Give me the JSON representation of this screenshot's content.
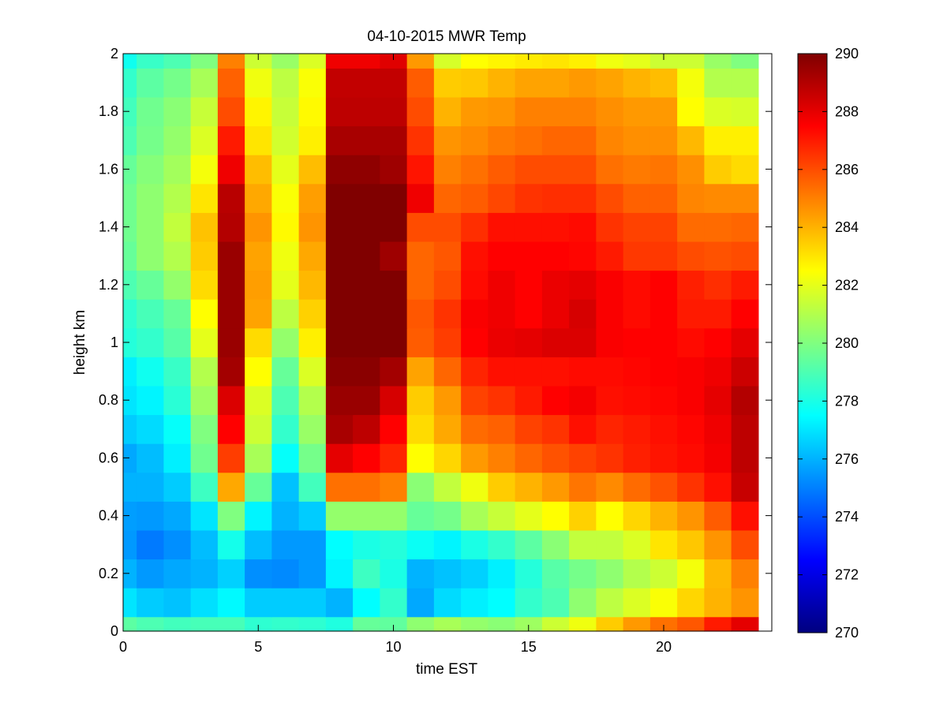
{
  "chart_data": {
    "type": "heatmap",
    "title": "04-10-2015 MWR Temp",
    "xlabel": "time EST",
    "ylabel": "height km",
    "xlim": [
      0,
      24
    ],
    "ylim": [
      0,
      2
    ],
    "x_ticks": [
      0,
      5,
      10,
      15,
      20
    ],
    "y_ticks": [
      0,
      0.2,
      0.4,
      0.6,
      0.8,
      1,
      1.2,
      1.4,
      1.6,
      1.8,
      2
    ],
    "x_tick_labels": [
      "0",
      "5",
      "10",
      "15",
      "20"
    ],
    "y_tick_labels": [
      "0",
      "0.2",
      "0.4",
      "0.6",
      "0.8",
      "1",
      "1.2",
      "1.4",
      "1.6",
      "1.8",
      "2"
    ],
    "colorbar": {
      "min": 270,
      "max": 290,
      "colormap": "jet",
      "ticks": [
        270,
        272,
        274,
        276,
        278,
        280,
        282,
        284,
        286,
        288,
        290
      ],
      "tick_labels": [
        "270",
        "272",
        "274",
        "276",
        "278",
        "280",
        "282",
        "284",
        "286",
        "288",
        "290"
      ]
    },
    "grid": false,
    "x": [
      0,
      1,
      2,
      3,
      4,
      5,
      6,
      7,
      8,
      9,
      10,
      11,
      12,
      13,
      14,
      15,
      16,
      17,
      18,
      19,
      20,
      21,
      22,
      23
    ],
    "y": [
      0,
      0.1,
      0.2,
      0.3,
      0.4,
      0.5,
      0.6,
      0.7,
      0.8,
      0.9,
      1.0,
      1.1,
      1.2,
      1.3,
      1.4,
      1.5,
      1.6,
      1.7,
      1.8,
      1.9,
      2.0
    ],
    "z": [
      [
        279.3,
        279.0,
        278.8,
        278.9,
        278.9,
        278.4,
        278.5,
        278.4,
        278.1,
        279.5,
        279.4,
        280.3,
        280.8,
        280.4,
        280.2,
        280.6,
        281.5,
        282.2,
        283.5,
        284.5,
        285.3,
        285.8,
        287.0,
        288.0
      ],
      [
        277.0,
        276.5,
        276.3,
        276.9,
        277.4,
        276.5,
        276.5,
        276.5,
        276.0,
        277.5,
        278.5,
        275.8,
        276.8,
        277.2,
        277.5,
        278.5,
        279.0,
        280.3,
        281.2,
        281.8,
        282.4,
        283.3,
        284.0,
        284.6
      ],
      [
        276.0,
        275.5,
        275.8,
        276.0,
        276.6,
        275.3,
        275.2,
        275.5,
        277.3,
        278.7,
        278.0,
        276.0,
        276.3,
        276.6,
        277.2,
        278.2,
        279.2,
        279.8,
        280.3,
        281.0,
        281.5,
        282.3,
        283.9,
        285.0
      ],
      [
        275.5,
        274.9,
        275.3,
        276.2,
        277.9,
        276.2,
        275.5,
        275.5,
        277.5,
        278.0,
        278.2,
        277.7,
        277.3,
        278.0,
        278.5,
        279.3,
        280.2,
        281.3,
        281.3,
        281.8,
        283.0,
        283.6,
        284.6,
        286.0
      ],
      [
        275.6,
        275.5,
        275.8,
        277.0,
        280.0,
        277.3,
        276.0,
        276.5,
        280.4,
        280.4,
        280.4,
        279.5,
        279.8,
        280.8,
        281.4,
        282.0,
        282.5,
        283.4,
        282.5,
        283.3,
        284.0,
        284.6,
        285.7,
        287.2
      ],
      [
        276.0,
        276.0,
        276.5,
        278.7,
        284.2,
        279.5,
        276.3,
        278.8,
        285.3,
        285.3,
        285.0,
        280.2,
        281.3,
        282.2,
        283.5,
        284.0,
        284.5,
        285.2,
        284.8,
        285.4,
        285.9,
        286.5,
        287.2,
        288.6
      ],
      [
        275.8,
        276.2,
        277.2,
        279.7,
        286.3,
        280.8,
        277.6,
        279.8,
        288.0,
        287.5,
        286.8,
        282.5,
        283.3,
        284.5,
        285.0,
        285.5,
        285.9,
        286.2,
        286.5,
        286.9,
        287.1,
        287.3,
        287.7,
        288.8
      ],
      [
        276.5,
        276.8,
        277.6,
        280.0,
        287.5,
        281.5,
        278.5,
        280.5,
        289.2,
        288.8,
        287.5,
        283.2,
        284.2,
        285.4,
        285.6,
        286.2,
        286.5,
        287.2,
        286.8,
        287.0,
        287.2,
        287.4,
        287.8,
        288.8
      ],
      [
        277.0,
        277.3,
        278.3,
        280.6,
        288.2,
        281.8,
        279.0,
        281.0,
        289.5,
        289.5,
        288.3,
        283.5,
        284.5,
        286.2,
        286.5,
        287.0,
        287.5,
        287.7,
        287.2,
        287.3,
        287.4,
        287.6,
        288.0,
        289.0
      ],
      [
        277.2,
        277.8,
        278.6,
        281.0,
        289.3,
        282.5,
        279.5,
        281.8,
        289.8,
        289.8,
        289.3,
        284.3,
        285.5,
        286.8,
        287.2,
        287.2,
        287.2,
        287.3,
        287.3,
        287.4,
        287.5,
        287.6,
        287.8,
        288.5
      ],
      [
        278.2,
        278.5,
        279.2,
        282.0,
        289.5,
        283.2,
        280.4,
        282.8,
        290.0,
        290.0,
        290.0,
        285.7,
        286.3,
        287.5,
        287.9,
        288.0,
        288.2,
        288.2,
        287.6,
        287.5,
        287.5,
        287.3,
        287.5,
        288.0
      ],
      [
        278.4,
        278.9,
        279.5,
        282.5,
        289.5,
        284.3,
        281.2,
        283.4,
        290.0,
        290.0,
        290.0,
        285.8,
        286.5,
        287.6,
        287.8,
        287.5,
        287.9,
        288.3,
        287.6,
        287.3,
        287.5,
        287.0,
        287.0,
        287.5
      ],
      [
        279.0,
        279.5,
        280.4,
        283.2,
        289.5,
        284.4,
        282.0,
        283.9,
        290.0,
        290.0,
        290.0,
        285.5,
        286.0,
        287.3,
        287.8,
        287.5,
        287.9,
        288.0,
        287.6,
        287.3,
        287.5,
        286.9,
        286.6,
        287.0
      ],
      [
        279.5,
        280.3,
        281.0,
        283.5,
        289.5,
        284.3,
        282.2,
        284.2,
        290.0,
        290.0,
        289.4,
        285.5,
        285.8,
        287.2,
        287.5,
        287.5,
        287.5,
        287.4,
        287.0,
        286.4,
        286.4,
        286.0,
        285.9,
        286.0
      ],
      [
        279.7,
        280.3,
        281.3,
        283.7,
        289.0,
        284.6,
        282.6,
        284.6,
        290.0,
        290.0,
        290.0,
        286.0,
        286.0,
        286.6,
        287.2,
        287.2,
        287.2,
        287.3,
        286.5,
        286.2,
        286.2,
        285.4,
        285.4,
        285.5
      ],
      [
        279.7,
        280.3,
        281.0,
        283.0,
        288.9,
        284.2,
        282.4,
        284.4,
        290.0,
        290.0,
        290.0,
        287.8,
        285.5,
        285.7,
        286.1,
        286.5,
        286.6,
        286.6,
        286.0,
        285.6,
        285.6,
        284.9,
        284.8,
        284.8
      ],
      [
        279.5,
        280.1,
        280.7,
        282.3,
        287.8,
        283.8,
        282.0,
        283.8,
        289.7,
        289.7,
        289.4,
        287.1,
        285.0,
        285.3,
        285.7,
        286.0,
        286.0,
        286.0,
        285.3,
        285.1,
        285.2,
        284.7,
        283.5,
        283.2
      ],
      [
        279.0,
        279.8,
        280.4,
        281.8,
        287.0,
        283.0,
        281.6,
        282.8,
        289.2,
        289.2,
        289.2,
        286.5,
        284.6,
        284.8,
        285.1,
        285.3,
        285.5,
        285.5,
        284.9,
        284.7,
        284.7,
        283.9,
        282.8,
        282.8
      ],
      [
        278.8,
        279.7,
        280.2,
        281.4,
        286.0,
        282.7,
        281.4,
        282.6,
        288.8,
        288.8,
        288.8,
        286.0,
        284.0,
        284.5,
        284.6,
        285.0,
        285.0,
        285.0,
        284.7,
        284.5,
        284.5,
        282.5,
        281.8,
        281.7
      ],
      [
        278.5,
        279.3,
        279.8,
        280.8,
        285.6,
        282.2,
        281.2,
        282.4,
        288.7,
        288.7,
        288.7,
        285.7,
        283.5,
        283.6,
        284.0,
        284.3,
        284.3,
        284.5,
        284.3,
        284.0,
        283.8,
        282.3,
        281.0,
        281.0
      ],
      [
        277.8,
        278.6,
        279.0,
        280.0,
        285.0,
        281.5,
        280.5,
        281.8,
        287.8,
        287.8,
        288.1,
        284.5,
        281.7,
        282.5,
        282.7,
        282.9,
        283.0,
        282.8,
        282.2,
        282.0,
        281.5,
        281.5,
        280.5,
        280.0
      ]
    ]
  }
}
